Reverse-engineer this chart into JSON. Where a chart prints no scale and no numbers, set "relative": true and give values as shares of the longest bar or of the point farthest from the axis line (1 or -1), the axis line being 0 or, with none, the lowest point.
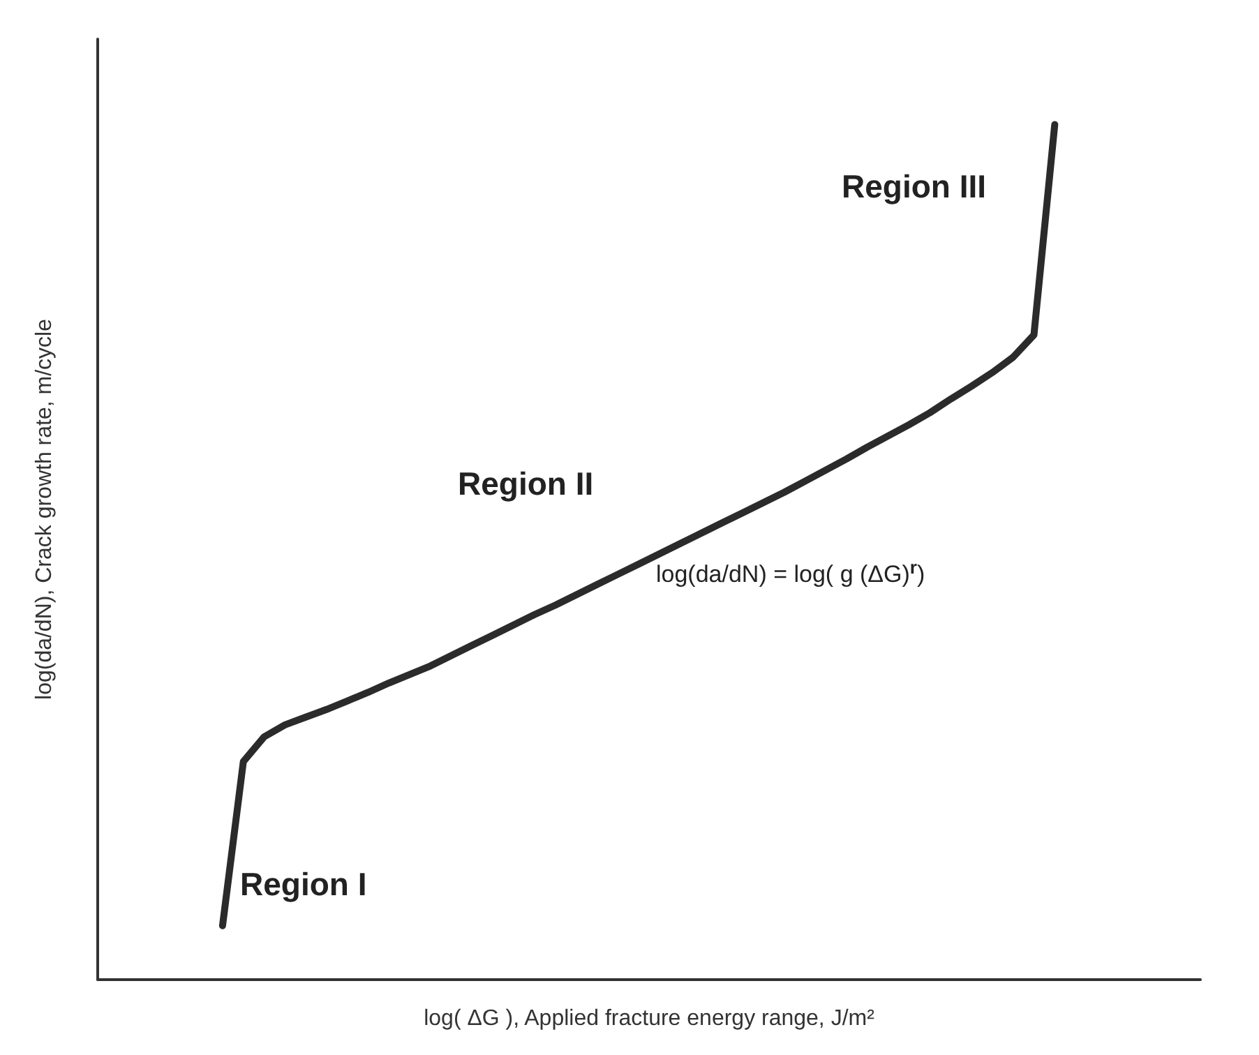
{
  "chart_data": {
    "type": "line",
    "relative": true,
    "xlabel": "log( ΔG ), Applied fracture energy range, J/m²",
    "ylabel": "log(da/dN), Crack growth rate, m/cycle",
    "grid": false,
    "marker": "none",
    "line_style": "solid",
    "categories": [
      null,
      null,
      null,
      null,
      null,
      null,
      null,
      null,
      null,
      null,
      null,
      null,
      null,
      null,
      null,
      null,
      null,
      null,
      null,
      null,
      null,
      null,
      null,
      null,
      null,
      null,
      null,
      null,
      null,
      null,
      null,
      null,
      null,
      null,
      null,
      null,
      null,
      null,
      null,
      null,
      null,
      null,
      null,
      null,
      null,
      null,
      null,
      null,
      null,
      null,
      null,
      null,
      null,
      null
    ],
    "series": [
      {
        "color": "#2b2b2b",
        "values": [
          null,
          null,
          null,
          null,
          null,
          null,
          0.063,
          0.255,
          0.284,
          0.298,
          0.307,
          0.316,
          0.326,
          0.336,
          0.347,
          0.357,
          0.367,
          0.379,
          0.391,
          0.403,
          0.415,
          0.427,
          0.438,
          0.45,
          0.462,
          0.474,
          0.486,
          0.498,
          0.51,
          0.522,
          0.534,
          0.546,
          0.558,
          0.57,
          0.583,
          0.596,
          0.609,
          0.623,
          0.636,
          0.649,
          0.663,
          0.679,
          0.694,
          0.71,
          0.728,
          0.754,
          1,
          null,
          null,
          null,
          null,
          null,
          null,
          null
        ]
      }
    ],
    "annotations": [
      "Region I",
      "Region II",
      "Region III",
      "log(da/dN) = log( g (ΔG)$^{r}$)"
    ]
  }
}
